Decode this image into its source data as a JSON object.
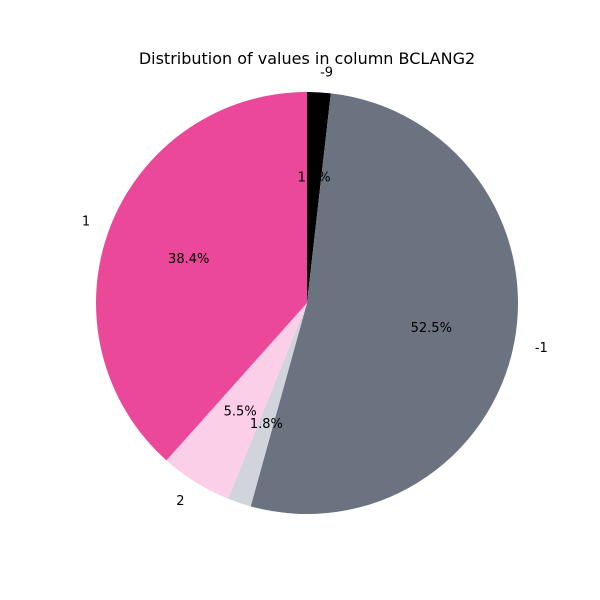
{
  "chart_data": {
    "type": "pie",
    "title": "Distribution of values in column BCLANG2",
    "start_angle_deg": 90,
    "direction": "clockwise",
    "slices": [
      {
        "label": "-9",
        "value": 1.8,
        "pct_text": "1.8%",
        "color": "#000000"
      },
      {
        "label": "-1",
        "value": 52.5,
        "pct_text": "52.5%",
        "color": "#6b7280"
      },
      {
        "label": "",
        "value": 1.8,
        "pct_text": "1.8%",
        "color": "#d1d5db"
      },
      {
        "label": "2",
        "value": 5.5,
        "pct_text": "5.5%",
        "color": "#fbcfe8"
      },
      {
        "label": "1",
        "value": 38.4,
        "pct_text": "38.4%",
        "color": "#ec4899"
      }
    ]
  }
}
